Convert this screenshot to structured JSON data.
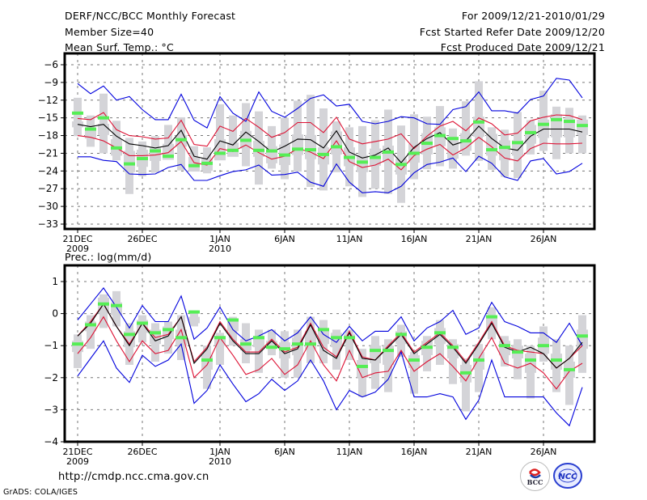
{
  "header": {
    "title": "DERF/NCC/BCC Monthly Forecast",
    "member_size": "Member Size=40",
    "variable_1": "Mean Surf. Temp.: °C",
    "period": "For 2009/12/21-2010/01/29",
    "start_date": "Fcst Started Refer Date 2009/12/20",
    "produced_date": "Fcst Produced Date 2009/12/21"
  },
  "footer": {
    "url": "http://cmdp.ncc.cma.gov.cn",
    "credit": "GrADS: COLA/IGES",
    "logo_1": "BCC",
    "logo_2": "NCC"
  },
  "colors": {
    "bound": "#0000dd",
    "spread": "#dd1133",
    "mean": "#000000",
    "member": "#55ee55",
    "box": "#d4d4d8",
    "grid": "#777777"
  },
  "chart_data": [
    {
      "type": "line",
      "title": "Mean Surf. Temp.: °C",
      "ylabel": "°C",
      "ylim": [
        -34,
        -4.5
      ],
      "yticks": [
        -6,
        -9,
        -12,
        -15,
        -18,
        -21,
        -24,
        -27,
        -30,
        -33
      ],
      "xticks": [
        {
          "day": 0,
          "label": "21DEC",
          "sub": "2009"
        },
        {
          "day": 5,
          "label": "26DEC",
          "sub": ""
        },
        {
          "day": 11,
          "label": "1JAN",
          "sub": "2010"
        },
        {
          "day": 16,
          "label": "6JAN",
          "sub": ""
        },
        {
          "day": 21,
          "label": "11JAN",
          "sub": ""
        },
        {
          "day": 26,
          "label": "16JAN",
          "sub": ""
        },
        {
          "day": 31,
          "label": "21JAN",
          "sub": ""
        },
        {
          "day": 36,
          "label": "26JAN",
          "sub": ""
        }
      ],
      "grid": true,
      "series": [
        {
          "name": "max",
          "role": "bound",
          "values": [
            -9.2,
            -10.9,
            -9.6,
            -12.0,
            -11.4,
            -13.6,
            -15.3,
            -15.3,
            -11.0,
            -15.4,
            -16.7,
            -11.4,
            -14.2,
            -15.6,
            -10.6,
            -13.9,
            -14.9,
            -13.4,
            -11.7,
            -11.1,
            -13.0,
            -12.7,
            -15.6,
            -16.0,
            -15.6,
            -14.8,
            -15.0,
            -16.0,
            -16.1,
            -13.6,
            -13.1,
            -10.6,
            -13.8,
            -13.8,
            -14.2,
            -11.9,
            -11.3,
            -8.3,
            -8.6,
            -11.6
          ]
        },
        {
          "name": "upper",
          "role": "spread",
          "values": [
            -15.1,
            -15.3,
            -14.1,
            -17.0,
            -18.0,
            -18.2,
            -18.6,
            -18.4,
            -15.4,
            -19.5,
            -19.8,
            -16.4,
            -17.3,
            -15.1,
            -16.6,
            -18.3,
            -17.5,
            -15.8,
            -15.8,
            -17.5,
            -14.9,
            -18.6,
            -19.4,
            -19.0,
            -18.6,
            -17.7,
            -20.2,
            -18.1,
            -16.4,
            -15.6,
            -17.2,
            -15.0,
            -16.0,
            -17.9,
            -17.6,
            -15.5,
            -14.9,
            -14.5,
            -14.6,
            -15.3
          ]
        },
        {
          "name": "mean",
          "role": "mean",
          "values": [
            -16.1,
            -16.5,
            -16.1,
            -18.1,
            -19.4,
            -19.7,
            -20.1,
            -19.7,
            -17.1,
            -21.5,
            -22.0,
            -18.9,
            -19.6,
            -17.4,
            -19.0,
            -20.8,
            -19.8,
            -18.6,
            -18.7,
            -20.1,
            -17.2,
            -20.8,
            -21.8,
            -21.3,
            -20.1,
            -22.6,
            -20.0,
            -18.5,
            -17.5,
            -19.6,
            -18.9,
            -16.4,
            -18.5,
            -20.1,
            -20.5,
            -18.1,
            -16.9,
            -16.9,
            -16.9,
            -17.4
          ]
        },
        {
          "name": "lower",
          "role": "spread",
          "values": [
            -18.0,
            -18.3,
            -18.9,
            -20.1,
            -21.4,
            -21.4,
            -21.3,
            -20.9,
            -19.0,
            -22.6,
            -23.0,
            -20.2,
            -20.7,
            -19.6,
            -20.9,
            -22.0,
            -21.5,
            -20.2,
            -20.8,
            -21.9,
            -18.9,
            -22.4,
            -23.4,
            -23.0,
            -22.0,
            -23.8,
            -21.4,
            -20.3,
            -19.5,
            -21.3,
            -20.1,
            -18.3,
            -19.9,
            -21.8,
            -22.3,
            -20.2,
            -19.3,
            -19.4,
            -19.4,
            -19.3
          ]
        },
        {
          "name": "min",
          "role": "bound",
          "values": [
            -21.6,
            -21.6,
            -22.2,
            -22.4,
            -24.5,
            -24.6,
            -24.5,
            -23.4,
            -22.9,
            -25.6,
            -25.6,
            -24.8,
            -24.1,
            -23.8,
            -23.0,
            -24.7,
            -24.6,
            -24.2,
            -25.9,
            -26.6,
            -22.8,
            -25.9,
            -27.7,
            -27.5,
            -27.7,
            -26.6,
            -24.3,
            -22.9,
            -22.5,
            -21.8,
            -24.1,
            -21.5,
            -22.7,
            -25.0,
            -25.6,
            -22.3,
            -21.9,
            -24.5,
            -24.1,
            -22.7
          ]
        },
        {
          "name": "member",
          "role": "marker",
          "values": [
            -14.2,
            -16.9,
            -15.0,
            -20.1,
            -22.8,
            -21.9,
            -20.6,
            -21.5,
            -18.7,
            -23.1,
            -22.7,
            -21.0,
            -20.5,
            -18.8,
            -20.5,
            -20.6,
            -21.3,
            -20.3,
            -20.4,
            -21.2,
            -19.9,
            -21.7,
            -22.5,
            -21.7,
            -20.8,
            -22.9,
            -21.0,
            -19.3,
            -18.0,
            -18.5,
            -18.9,
            -15.7,
            -20.4,
            -20.0,
            -19.2,
            -17.5,
            -16.1,
            -15.3,
            -15.6,
            -16.3
          ]
        },
        {
          "name": "box_hi",
          "role": "box",
          "values": [
            -11.6,
            -14.6,
            -10.9,
            -15.5,
            -18.4,
            -19.0,
            -18.1,
            -16.2,
            -14.9,
            -19.8,
            -20.0,
            -12.7,
            -14.6,
            -12.5,
            -13.9,
            -16.4,
            -15.0,
            -12.1,
            -11.1,
            -13.4,
            -15.6,
            -16.6,
            -16.4,
            -15.4,
            -13.6,
            -16.3,
            -14.4,
            -14.8,
            -13.0,
            -16.8,
            -12.2,
            -8.8,
            -16.6,
            -17.0,
            -14.0,
            -15.4,
            -10.4,
            -13.1,
            -13.3,
            -14.6
          ]
        },
        {
          "name": "box_lo",
          "role": "box",
          "values": [
            -18.1,
            -19.9,
            -21.0,
            -22.2,
            -27.9,
            -24.9,
            -24.3,
            -20.9,
            -23.9,
            -23.4,
            -24.4,
            -20.6,
            -21.0,
            -23.2,
            -26.3,
            -23.6,
            -25.4,
            -24.1,
            -26.7,
            -27.3,
            -24.2,
            -26.6,
            -28.4,
            -27.0,
            -27.9,
            -29.4,
            -25.4,
            -23.7,
            -23.2,
            -23.6,
            -21.4,
            -22.3,
            -23.8,
            -25.0,
            -25.2,
            -21.2,
            -20.6,
            -22.0,
            -21.0,
            -21.0
          ]
        },
        {
          "name": "box_mid_hi",
          "role": "boxinner",
          "values": [
            -15.6,
            -16.6,
            -16.0,
            -18.6,
            -20.6,
            -20.4,
            -20.0,
            -19.4,
            -17.9,
            -21.6,
            -21.9,
            -18.6,
            -19.2,
            -17.2,
            -18.9,
            -19.8,
            -19.5,
            -17.8,
            -17.9,
            -20.0,
            -17.3,
            -20.0,
            -21.3,
            -20.2,
            -19.7,
            -21.9,
            -19.4,
            -17.6,
            -16.6,
            -18.8,
            -17.6,
            -14.8,
            -17.7,
            -18.8,
            -18.8,
            -16.2,
            -15.3,
            -14.4,
            -15.2,
            -15.3
          ]
        },
        {
          "name": "box_mid_lo",
          "role": "boxinner",
          "values": [
            -16.6,
            -18.5,
            -17.9,
            -21.4,
            -24.2,
            -23.3,
            -22.3,
            -22.1,
            -19.9,
            -24.1,
            -24.0,
            -22.2,
            -21.6,
            -20.2,
            -21.6,
            -22.7,
            -23.0,
            -21.3,
            -22.0,
            -22.9,
            -21.2,
            -23.2,
            -24.2,
            -23.1,
            -22.6,
            -24.6,
            -22.6,
            -21.2,
            -19.8,
            -21.9,
            -20.6,
            -18.2,
            -21.4,
            -22.2,
            -21.4,
            -19.4,
            -18.4,
            -18.3,
            -18.3,
            -17.9
          ]
        }
      ]
    },
    {
      "type": "line",
      "title": "Prec.: log(mm/d)",
      "ylabel": "log(mm/d)",
      "ylim": [
        -4,
        1.5
      ],
      "yticks": [
        1,
        0,
        -1,
        -2,
        -3,
        -4
      ],
      "xticks": [
        {
          "day": 0,
          "label": "21DEC",
          "sub": "2009"
        },
        {
          "day": 5,
          "label": "26DEC",
          "sub": ""
        },
        {
          "day": 11,
          "label": "1JAN",
          "sub": "2010"
        },
        {
          "day": 16,
          "label": "6JAN",
          "sub": ""
        },
        {
          "day": 21,
          "label": "11JAN",
          "sub": ""
        },
        {
          "day": 26,
          "label": "16JAN",
          "sub": ""
        },
        {
          "day": 31,
          "label": "21JAN",
          "sub": ""
        },
        {
          "day": 36,
          "label": "26JAN",
          "sub": ""
        }
      ],
      "grid": true,
      "series": [
        {
          "name": "max",
          "role": "bound",
          "values": [
            -0.2,
            0.3,
            0.8,
            0.2,
            -0.45,
            0.25,
            -0.25,
            -0.25,
            0.55,
            -0.8,
            -0.45,
            0.2,
            -0.5,
            -0.85,
            -0.7,
            -0.5,
            -0.85,
            -0.6,
            -0.1,
            -0.65,
            -0.9,
            -0.4,
            -0.85,
            -0.55,
            -0.55,
            -0.1,
            -0.85,
            -0.45,
            -0.25,
            0.1,
            -0.65,
            -0.45,
            0.35,
            -0.25,
            -0.4,
            -0.6,
            -0.6,
            -0.9,
            -0.3,
            -1.0
          ]
        },
        {
          "name": "upper",
          "role": "spread",
          "values": [
            -0.7,
            -0.25,
            0.3,
            -0.4,
            -0.95,
            -0.3,
            -0.75,
            -0.65,
            -0.1,
            -1.5,
            -1.05,
            -0.25,
            -0.8,
            -1.2,
            -1.2,
            -0.8,
            -1.2,
            -1.05,
            -0.3,
            -1.05,
            -1.35,
            -0.55,
            -1.35,
            -1.45,
            -1.0,
            -0.6,
            -1.2,
            -0.9,
            -0.6,
            -1.0,
            -1.5,
            -0.9,
            -0.25,
            -1.0,
            -1.15,
            -1.2,
            -1.25,
            -1.7,
            -1.4,
            -1.0
          ]
        },
        {
          "name": "mean",
          "role": "mean",
          "values": [
            -0.7,
            -0.3,
            0.3,
            -0.4,
            -1.0,
            -0.3,
            -0.85,
            -0.7,
            -0.1,
            -1.55,
            -1.1,
            -0.3,
            -0.85,
            -1.25,
            -1.25,
            -0.85,
            -1.25,
            -1.1,
            -0.35,
            -1.15,
            -1.4,
            -0.6,
            -1.4,
            -1.45,
            -1.05,
            -0.65,
            -1.25,
            -0.95,
            -0.65,
            -1.05,
            -1.55,
            -0.95,
            -0.3,
            -1.05,
            -1.2,
            -1.05,
            -1.25,
            -1.7,
            -1.4,
            -0.9
          ]
        },
        {
          "name": "lower",
          "role": "spread",
          "values": [
            -1.25,
            -0.75,
            -0.1,
            -0.85,
            -1.5,
            -0.85,
            -1.25,
            -1.15,
            -0.5,
            -2.0,
            -1.6,
            -0.75,
            -1.3,
            -1.9,
            -1.75,
            -1.4,
            -1.9,
            -1.6,
            -0.85,
            -1.6,
            -2.1,
            -1.15,
            -2.0,
            -1.85,
            -1.8,
            -1.15,
            -1.8,
            -1.5,
            -1.25,
            -1.65,
            -2.1,
            -1.4,
            -0.75,
            -1.55,
            -1.7,
            -1.55,
            -1.85,
            -2.35,
            -1.8,
            -1.55
          ]
        },
        {
          "name": "min",
          "role": "bound",
          "values": [
            -1.95,
            -1.4,
            -0.85,
            -1.7,
            -2.15,
            -1.3,
            -1.65,
            -1.45,
            -0.95,
            -2.8,
            -2.4,
            -1.6,
            -2.2,
            -2.75,
            -2.5,
            -2.05,
            -2.4,
            -2.1,
            -1.45,
            -2.1,
            -3.0,
            -2.4,
            -2.6,
            -2.45,
            -2.05,
            -1.2,
            -2.6,
            -2.6,
            -2.5,
            -2.6,
            -3.3,
            -2.7,
            -1.45,
            -2.6,
            -2.6,
            -2.6,
            -2.6,
            -3.1,
            -3.5,
            -2.3
          ]
        },
        {
          "name": "member",
          "role": "marker",
          "values": [
            -0.95,
            -0.35,
            0.3,
            0.25,
            -0.65,
            -0.3,
            -0.6,
            -0.5,
            -0.75,
            0.05,
            -1.45,
            -0.75,
            -0.2,
            -0.95,
            -0.75,
            -1.05,
            -1.1,
            -0.95,
            -0.95,
            -0.5,
            -0.75,
            -0.75,
            -1.65,
            -1.15,
            -1.15,
            -0.65,
            -1.45,
            -1.05,
            -0.6,
            -1.05,
            -1.85,
            -1.45,
            -0.1,
            -1.0,
            -1.2,
            -1.45,
            -1.0,
            -1.45,
            -1.75,
            -0.7
          ]
        },
        {
          "name": "box_hi",
          "role": "box",
          "values": [
            -0.65,
            -0.05,
            0.6,
            0.7,
            -0.3,
            -0.05,
            -0.3,
            -0.25,
            -0.05,
            0.1,
            -1.0,
            -0.6,
            -0.1,
            -0.3,
            -0.5,
            -0.5,
            -0.55,
            -0.5,
            -0.1,
            -0.2,
            -0.5,
            -0.5,
            -1.1,
            -0.7,
            -0.8,
            -0.35,
            -1.2,
            -0.7,
            -0.2,
            -0.8,
            -1.4,
            -0.95,
            0.2,
            -0.7,
            -0.8,
            -1.0,
            -0.4,
            -0.8,
            -1.0,
            -0.05
          ]
        },
        {
          "name": "box_lo",
          "role": "box",
          "values": [
            -1.7,
            -1.1,
            -0.45,
            -0.4,
            -1.6,
            -0.9,
            -1.5,
            -1.25,
            -1.45,
            -0.4,
            -2.35,
            -1.6,
            -1.0,
            -1.55,
            -1.85,
            -1.3,
            -2.0,
            -2.0,
            -1.55,
            -1.55,
            -1.75,
            -1.45,
            -2.6,
            -2.35,
            -2.45,
            -1.35,
            -2.5,
            -1.8,
            -1.6,
            -2.2,
            -3.05,
            -2.45,
            -0.8,
            -1.65,
            -2.05,
            -2.65,
            -1.5,
            -2.45,
            -2.85,
            -1.85
          ]
        },
        {
          "name": "box_mid_hi",
          "role": "boxinner",
          "values": [
            -0.85,
            -0.25,
            0.5,
            0.35,
            -0.55,
            -0.2,
            -0.5,
            -0.4,
            -0.5,
            -0.1,
            -1.3,
            -0.7,
            -0.15,
            -0.8,
            -0.7,
            -0.85,
            -0.9,
            -0.75,
            -0.55,
            -0.5,
            -0.6,
            -0.65,
            -1.45,
            -1.0,
            -1.0,
            -0.55,
            -1.3,
            -0.85,
            -0.45,
            -0.95,
            -1.6,
            -1.2,
            -0.05,
            -0.85,
            -1.0,
            -1.25,
            -0.75,
            -1.25,
            -1.5,
            -0.5
          ]
        },
        {
          "name": "box_mid_lo",
          "role": "boxinner",
          "values": [
            -1.2,
            -0.55,
            0.0,
            -0.05,
            -1.05,
            -0.6,
            -0.95,
            -0.8,
            -1.0,
            -0.3,
            -1.75,
            -1.0,
            -0.55,
            -1.15,
            -1.05,
            -1.1,
            -1.4,
            -1.3,
            -1.1,
            -0.95,
            -1.05,
            -0.9,
            -2.0,
            -1.55,
            -1.6,
            -0.95,
            -1.7,
            -1.3,
            -0.95,
            -1.4,
            -2.15,
            -1.75,
            -0.55,
            -1.3,
            -1.4,
            -1.85,
            -1.25,
            -1.75,
            -2.0,
            -1.1
          ]
        }
      ]
    }
  ]
}
